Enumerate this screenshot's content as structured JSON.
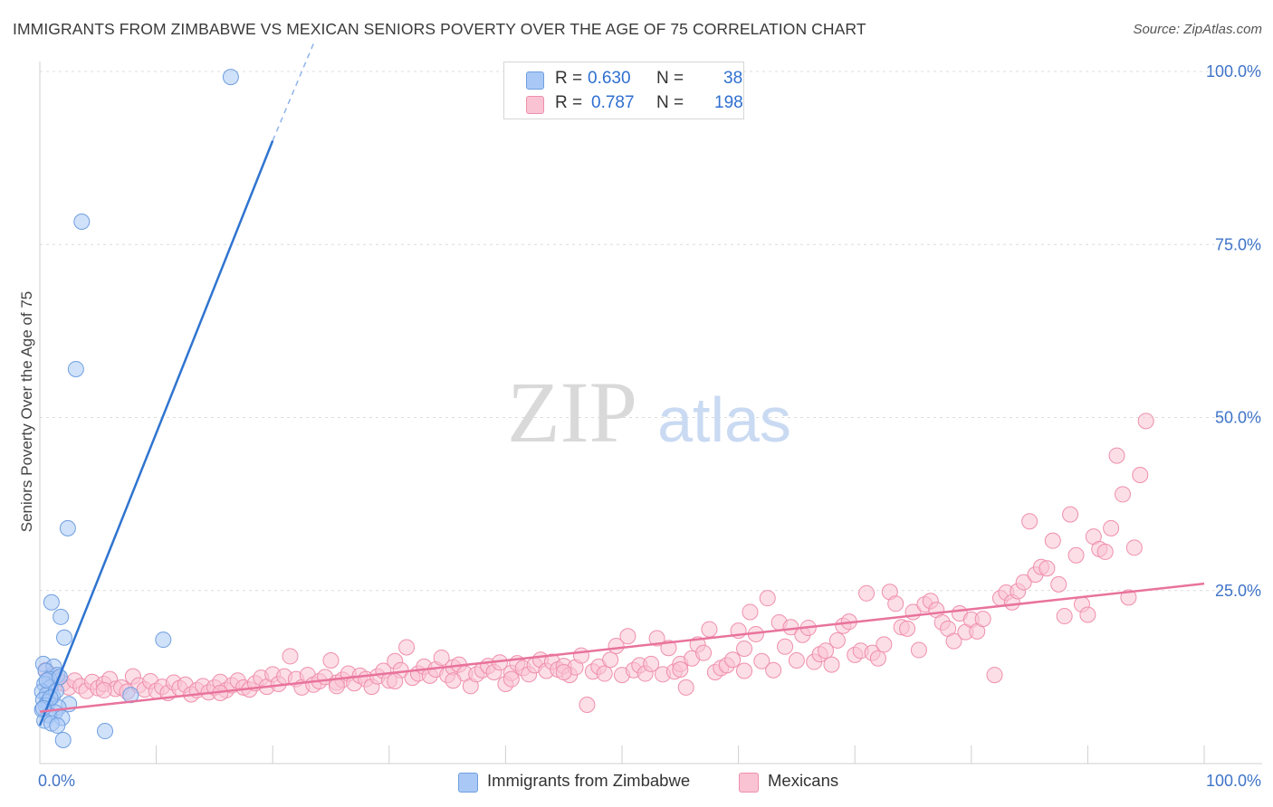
{
  "header": {
    "title": "IMMIGRANTS FROM ZIMBABWE VS MEXICAN SENIORS POVERTY OVER THE AGE OF 75 CORRELATION CHART",
    "source": "Source: ZipAtlas.com"
  },
  "watermark": {
    "part1": "ZIP",
    "part2": "atlas"
  },
  "legend": {
    "rows": [
      {
        "r_label": "R =",
        "r_value": "0.630",
        "n_label": "N =",
        "n_value": "38",
        "color": "#a9c8f5",
        "border": "#6f9fe0"
      },
      {
        "r_label": "R =",
        "r_value": "0.787",
        "n_label": "N =",
        "n_value": "198",
        "color": "#f9c3d3",
        "border": "#ef8fac"
      }
    ]
  },
  "bottom_legend": {
    "items": [
      {
        "label": "Immigrants from Zimbabwe",
        "color": "#a9c8f5",
        "border": "#6f9fe0"
      },
      {
        "label": "Mexicans",
        "color": "#f9c3d3",
        "border": "#ef8fac"
      }
    ]
  },
  "chart_data": {
    "type": "scatter",
    "title": "IMMIGRANTS FROM ZIMBABWE VS MEXICAN SENIORS POVERTY OVER THE AGE OF 75 CORRELATION CHART",
    "xlabel": "",
    "ylabel": "Seniors Poverty Over the Age of 75",
    "xlim": [
      0,
      100
    ],
    "ylim": [
      0,
      100
    ],
    "x_tick_labels": [
      "0.0%",
      "100.0%"
    ],
    "y_tick_labels": [
      {
        "value": 25,
        "label": "25.0%"
      },
      {
        "value": 50,
        "label": "50.0%"
      },
      {
        "value": 75,
        "label": "75.0%"
      },
      {
        "value": 100,
        "label": "100.0%"
      }
    ],
    "grid": true,
    "legend_position": "top-center",
    "series": [
      {
        "name": "Immigrants from Zimbabwe",
        "color": "#a9c8f5",
        "stroke": "#6f9fe0",
        "trend_color": "#2f74d0",
        "trend": {
          "x0": 0.0,
          "y0": 5.5,
          "x1": 20.0,
          "y1": 90.0,
          "dashed_to_x": 23.5,
          "dashed_to_y": 104.0
        },
        "points": [
          [
            16.4,
            99.2
          ],
          [
            3.6,
            78.3
          ],
          [
            3.1,
            57.0
          ],
          [
            2.4,
            34.0
          ],
          [
            1.0,
            23.3
          ],
          [
            1.8,
            21.2
          ],
          [
            2.1,
            18.2
          ],
          [
            10.6,
            17.9
          ],
          [
            0.3,
            14.4
          ],
          [
            1.2,
            14.0
          ],
          [
            0.5,
            13.4
          ],
          [
            1.5,
            12.8
          ],
          [
            0.8,
            12.2
          ],
          [
            0.4,
            11.5
          ],
          [
            0.9,
            11.0
          ],
          [
            0.2,
            10.4
          ],
          [
            0.6,
            10.0
          ],
          [
            1.1,
            9.7
          ],
          [
            0.3,
            9.2
          ],
          [
            0.7,
            8.9
          ],
          [
            2.5,
            8.6
          ],
          [
            0.5,
            8.4
          ],
          [
            1.6,
            8.1
          ],
          [
            0.2,
            7.8
          ],
          [
            1.3,
            7.4
          ],
          [
            0.8,
            7.0
          ],
          [
            1.9,
            6.6
          ],
          [
            0.4,
            6.2
          ],
          [
            1.0,
            5.8
          ],
          [
            1.5,
            5.5
          ],
          [
            5.6,
            4.7
          ],
          [
            2.0,
            3.4
          ],
          [
            0.6,
            12.0
          ],
          [
            1.4,
            10.5
          ],
          [
            0.9,
            9.5
          ],
          [
            7.8,
            9.9
          ],
          [
            0.3,
            8.0
          ],
          [
            1.7,
            12.5
          ]
        ]
      },
      {
        "name": "Mexicans",
        "color": "#f9c3d3",
        "stroke": "#ef8fac",
        "trend_color": "#e8739c",
        "trend": {
          "x0": 0.0,
          "y0": 7.5,
          "x1": 100.0,
          "y1": 26.0
        },
        "points": [
          [
            0.5,
            13.5
          ],
          [
            1.0,
            12.8
          ],
          [
            1.5,
            12.2
          ],
          [
            2.0,
            11.6
          ],
          [
            2.5,
            11.0
          ],
          [
            3.0,
            12.0
          ],
          [
            3.5,
            11.2
          ],
          [
            4.0,
            10.5
          ],
          [
            4.5,
            11.8
          ],
          [
            5.0,
            10.9
          ],
          [
            5.5,
            11.5
          ],
          [
            6.0,
            12.2
          ],
          [
            6.5,
            10.8
          ],
          [
            7.0,
            11.0
          ],
          [
            7.5,
            10.4
          ],
          [
            8.0,
            12.6
          ],
          [
            8.5,
            11.3
          ],
          [
            9.0,
            10.7
          ],
          [
            9.5,
            11.9
          ],
          [
            10.0,
            10.5
          ],
          [
            10.5,
            11.1
          ],
          [
            11.0,
            10.2
          ],
          [
            11.5,
            11.7
          ],
          [
            12.0,
            10.9
          ],
          [
            12.5,
            11.4
          ],
          [
            13.0,
            10.0
          ],
          [
            13.5,
            10.6
          ],
          [
            14.0,
            11.2
          ],
          [
            14.5,
            10.3
          ],
          [
            15.0,
            11.0
          ],
          [
            15.5,
            11.8
          ],
          [
            16.0,
            10.6
          ],
          [
            16.5,
            11.3
          ],
          [
            17.0,
            12.0
          ],
          [
            17.5,
            11.0
          ],
          [
            18.0,
            10.7
          ],
          [
            18.5,
            11.6
          ],
          [
            19.0,
            12.4
          ],
          [
            19.5,
            11.1
          ],
          [
            20.0,
            12.9
          ],
          [
            20.5,
            11.5
          ],
          [
            21.0,
            12.6
          ],
          [
            21.5,
            15.5
          ],
          [
            22.0,
            12.2
          ],
          [
            22.5,
            11.0
          ],
          [
            23.0,
            12.8
          ],
          [
            23.5,
            11.4
          ],
          [
            24.0,
            11.9
          ],
          [
            24.5,
            12.5
          ],
          [
            25.0,
            14.9
          ],
          [
            25.5,
            11.7
          ],
          [
            26.0,
            12.1
          ],
          [
            26.5,
            13.0
          ],
          [
            27.0,
            11.6
          ],
          [
            27.5,
            12.7
          ],
          [
            28.0,
            12.2
          ],
          [
            28.5,
            11.1
          ],
          [
            29.0,
            12.6
          ],
          [
            29.5,
            13.4
          ],
          [
            30.0,
            12.0
          ],
          [
            30.5,
            14.8
          ],
          [
            31.0,
            13.5
          ],
          [
            31.5,
            16.8
          ],
          [
            32.0,
            12.4
          ],
          [
            32.5,
            13.0
          ],
          [
            33.0,
            14.0
          ],
          [
            33.5,
            12.7
          ],
          [
            34.0,
            13.6
          ],
          [
            34.5,
            15.3
          ],
          [
            35.0,
            12.8
          ],
          [
            35.5,
            13.9
          ],
          [
            36.0,
            14.3
          ],
          [
            36.5,
            13.0
          ],
          [
            37.0,
            11.2
          ],
          [
            37.5,
            12.9
          ],
          [
            38.0,
            13.5
          ],
          [
            38.5,
            14.1
          ],
          [
            39.0,
            13.2
          ],
          [
            39.5,
            14.6
          ],
          [
            40.0,
            11.5
          ],
          [
            40.5,
            13.1
          ],
          [
            41.0,
            14.5
          ],
          [
            41.5,
            13.8
          ],
          [
            42.0,
            12.9
          ],
          [
            42.5,
            14.2
          ],
          [
            43.0,
            15.0
          ],
          [
            43.5,
            13.4
          ],
          [
            44.0,
            14.7
          ],
          [
            44.5,
            13.6
          ],
          [
            45.0,
            14.1
          ],
          [
            45.5,
            12.8
          ],
          [
            46.0,
            13.9
          ],
          [
            46.5,
            15.6
          ],
          [
            47.0,
            8.5
          ],
          [
            47.5,
            13.3
          ],
          [
            48.0,
            14.0
          ],
          [
            48.5,
            13.0
          ],
          [
            49.0,
            15.0
          ],
          [
            49.5,
            17.0
          ],
          [
            50.0,
            12.8
          ],
          [
            50.5,
            18.4
          ],
          [
            51.0,
            13.5
          ],
          [
            51.5,
            14.2
          ],
          [
            52.0,
            13.0
          ],
          [
            52.5,
            14.4
          ],
          [
            53.0,
            18.1
          ],
          [
            53.5,
            12.9
          ],
          [
            54.0,
            16.7
          ],
          [
            54.5,
            13.3
          ],
          [
            55.0,
            14.4
          ],
          [
            55.5,
            11.0
          ],
          [
            56.0,
            15.2
          ],
          [
            56.5,
            17.2
          ],
          [
            57.0,
            16.0
          ],
          [
            57.5,
            19.4
          ],
          [
            58.0,
            13.2
          ],
          [
            58.5,
            13.8
          ],
          [
            59.0,
            14.2
          ],
          [
            59.5,
            15.0
          ],
          [
            60.0,
            19.2
          ],
          [
            60.5,
            16.6
          ],
          [
            61.0,
            21.9
          ],
          [
            61.5,
            18.7
          ],
          [
            62.0,
            14.8
          ],
          [
            62.5,
            23.9
          ],
          [
            63.0,
            13.5
          ],
          [
            63.5,
            20.4
          ],
          [
            64.0,
            16.9
          ],
          [
            64.5,
            19.7
          ],
          [
            65.0,
            14.9
          ],
          [
            65.5,
            18.6
          ],
          [
            66.0,
            19.6
          ],
          [
            66.5,
            14.7
          ],
          [
            67.0,
            15.8
          ],
          [
            67.5,
            16.3
          ],
          [
            68.0,
            14.3
          ],
          [
            68.5,
            17.8
          ],
          [
            69.0,
            19.9
          ],
          [
            69.5,
            20.5
          ],
          [
            70.0,
            15.7
          ],
          [
            70.5,
            16.3
          ],
          [
            71.0,
            24.6
          ],
          [
            71.5,
            16.0
          ],
          [
            72.0,
            15.2
          ],
          [
            72.5,
            17.2
          ],
          [
            73.0,
            24.8
          ],
          [
            73.5,
            23.1
          ],
          [
            74.0,
            19.7
          ],
          [
            74.5,
            19.5
          ],
          [
            75.0,
            21.9
          ],
          [
            75.5,
            16.4
          ],
          [
            76.0,
            23.0
          ],
          [
            76.5,
            23.5
          ],
          [
            77.0,
            22.2
          ],
          [
            77.5,
            20.4
          ],
          [
            78.0,
            19.5
          ],
          [
            78.5,
            17.7
          ],
          [
            79.0,
            21.7
          ],
          [
            79.5,
            19.0
          ],
          [
            80.0,
            20.8
          ],
          [
            80.5,
            19.1
          ],
          [
            81.0,
            20.9
          ],
          [
            82.0,
            12.8
          ],
          [
            82.5,
            23.9
          ],
          [
            83.0,
            24.7
          ],
          [
            83.5,
            23.3
          ],
          [
            84.0,
            24.9
          ],
          [
            84.5,
            26.2
          ],
          [
            85.0,
            35.0
          ],
          [
            85.5,
            27.3
          ],
          [
            86.0,
            28.4
          ],
          [
            86.5,
            28.2
          ],
          [
            87.0,
            32.2
          ],
          [
            87.5,
            25.9
          ],
          [
            88.0,
            21.3
          ],
          [
            88.5,
            36.0
          ],
          [
            89.0,
            30.1
          ],
          [
            89.5,
            23.0
          ],
          [
            90.0,
            21.5
          ],
          [
            90.5,
            32.8
          ],
          [
            91.0,
            31.0
          ],
          [
            91.5,
            30.6
          ],
          [
            92.0,
            34.0
          ],
          [
            92.5,
            44.5
          ],
          [
            93.0,
            38.9
          ],
          [
            93.5,
            24.0
          ],
          [
            94.0,
            31.2
          ],
          [
            94.5,
            41.7
          ],
          [
            95.0,
            49.5
          ],
          [
            55.0,
            13.6
          ],
          [
            45.0,
            13.2
          ],
          [
            35.5,
            12.0
          ],
          [
            25.5,
            11.2
          ],
          [
            15.5,
            10.2
          ],
          [
            5.5,
            10.6
          ],
          [
            30.5,
            11.9
          ],
          [
            40.5,
            12.2
          ],
          [
            60.5,
            13.4
          ]
        ]
      }
    ]
  }
}
